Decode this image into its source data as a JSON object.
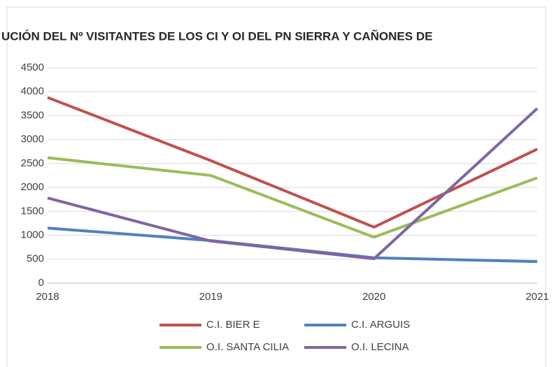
{
  "chart_data": {
    "type": "line",
    "title": "UCIÓN  DEL Nº VISITANTES DE LOS CI Y OI DEL PN SIERRA Y CAÑONES DE",
    "categories": [
      "2018",
      "2019",
      "2020",
      "2021"
    ],
    "series": [
      {
        "name": "C.I. BIER E",
        "color": "#c0504d",
        "values": [
          3880,
          2560,
          1170,
          2800
        ]
      },
      {
        "name": "C.I. ARGUIS",
        "color": "#4f81bd",
        "values": [
          1150,
          890,
          530,
          450
        ]
      },
      {
        "name": "O.I. SANTA CILIA",
        "color": "#9bbb59",
        "values": [
          2620,
          2250,
          960,
          2200
        ]
      },
      {
        "name": "O.I. LECINA",
        "color": "#8064a2",
        "values": [
          1780,
          880,
          510,
          3650
        ]
      }
    ],
    "ylim": [
      0,
      4500
    ],
    "yticks": [
      0,
      500,
      1000,
      1500,
      2000,
      2500,
      3000,
      3500,
      4000,
      4500
    ],
    "grid": true
  }
}
